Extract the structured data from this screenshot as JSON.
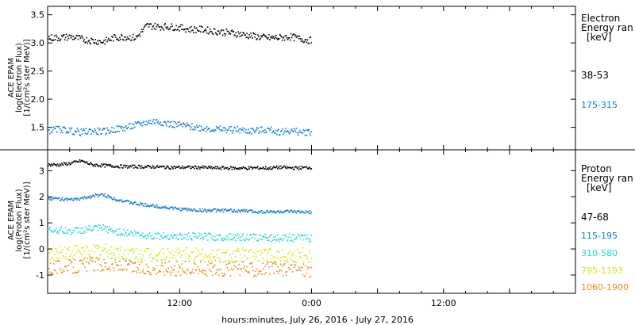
{
  "chart_data": [
    {
      "type": "scatter",
      "panel": "electron",
      "ylabel": [
        "ACE EPAM",
        "log(Electron Flux)",
        "[1/(cm²s ster MeV)]"
      ],
      "ylim": [
        1.1,
        3.65
      ],
      "yticks": [
        1.5,
        2.0,
        2.5,
        3.0,
        3.5
      ],
      "ytick_labels": [
        "1.5",
        "2.0",
        "2.5",
        "3.0",
        "3.5"
      ],
      "legend_title": [
        "Electron",
        "Energy ran",
        "[keV]"
      ],
      "series": [
        {
          "name": "38-53",
          "color": "#000000",
          "x": [
            0,
            1,
            2,
            3,
            4,
            5,
            6,
            7,
            8,
            9,
            10,
            11,
            12,
            13,
            14,
            15,
            16,
            17,
            18,
            19,
            20,
            21,
            22,
            23,
            24
          ],
          "y": [
            3.1,
            3.1,
            3.12,
            3.08,
            3.05,
            3.03,
            3.1,
            3.12,
            3.1,
            3.32,
            3.3,
            3.3,
            3.28,
            3.25,
            3.25,
            3.22,
            3.2,
            3.18,
            3.15,
            3.12,
            3.1,
            3.1,
            3.12,
            3.08,
            3.05
          ]
        },
        {
          "name": "175-315",
          "color": "#0a7ad8",
          "x": [
            0,
            1,
            2,
            3,
            4,
            5,
            6,
            7,
            8,
            9,
            10,
            11,
            12,
            13,
            14,
            15,
            16,
            17,
            18,
            19,
            20,
            21,
            22,
            23,
            24
          ],
          "y": [
            1.45,
            1.48,
            1.45,
            1.42,
            1.45,
            1.43,
            1.47,
            1.5,
            1.55,
            1.6,
            1.62,
            1.57,
            1.55,
            1.52,
            1.5,
            1.48,
            1.47,
            1.47,
            1.45,
            1.45,
            1.47,
            1.43,
            1.45,
            1.42,
            1.43
          ]
        }
      ]
    },
    {
      "type": "scatter",
      "panel": "proton",
      "ylabel": [
        "ACE EPAM",
        "log(Proton Flux)",
        "[1/(cm²s ster MeV)]"
      ],
      "ylim": [
        -1.7,
        3.8
      ],
      "yticks": [
        -1,
        0,
        1,
        2,
        3
      ],
      "ytick_labels": [
        "-1",
        "0",
        "1",
        "2",
        "3"
      ],
      "legend_title": [
        "Proton",
        "Energy ran",
        "[keV]"
      ],
      "series": [
        {
          "name": "47-68",
          "color": "#000000",
          "x": [
            0,
            1,
            2,
            3,
            4,
            5,
            6,
            7,
            8,
            9,
            10,
            11,
            12,
            13,
            14,
            15,
            16,
            17,
            18,
            19,
            20,
            21,
            22,
            23,
            24
          ],
          "y": [
            3.25,
            3.25,
            3.3,
            3.4,
            3.25,
            3.22,
            3.2,
            3.18,
            3.18,
            3.17,
            3.17,
            3.15,
            3.15,
            3.15,
            3.15,
            3.13,
            3.13,
            3.12,
            3.12,
            3.13,
            3.12,
            3.15,
            3.13,
            3.13,
            3.15
          ]
        },
        {
          "name": "115-195",
          "color": "#0a7ad8",
          "x": [
            0,
            1,
            2,
            3,
            4,
            5,
            6,
            7,
            8,
            9,
            10,
            11,
            12,
            13,
            14,
            15,
            16,
            17,
            18,
            19,
            20,
            21,
            22,
            23,
            24
          ],
          "y": [
            1.95,
            1.95,
            1.9,
            1.95,
            2.05,
            2.1,
            1.95,
            1.85,
            1.75,
            1.7,
            1.65,
            1.6,
            1.55,
            1.52,
            1.5,
            1.5,
            1.5,
            1.48,
            1.48,
            1.45,
            1.45,
            1.45,
            1.45,
            1.43,
            1.43
          ]
        },
        {
          "name": "310-580",
          "color": "#22d8d2",
          "x": [
            0,
            1,
            2,
            3,
            4,
            5,
            6,
            7,
            8,
            9,
            10,
            11,
            12,
            13,
            14,
            15,
            16,
            17,
            18,
            19,
            20,
            21,
            22,
            23,
            24
          ],
          "y": [
            0.75,
            0.75,
            0.7,
            0.75,
            0.8,
            0.82,
            0.7,
            0.65,
            0.6,
            0.55,
            0.52,
            0.52,
            0.5,
            0.5,
            0.5,
            0.48,
            0.48,
            0.48,
            0.47,
            0.47,
            0.45,
            0.45,
            0.45,
            0.45,
            0.45
          ]
        },
        {
          "name": "795-1193",
          "color": "#d2e81a",
          "x": [
            0,
            1,
            2,
            3,
            4,
            5,
            6,
            7,
            8,
            9,
            10,
            11,
            12,
            13,
            14,
            15,
            16,
            17,
            18,
            19,
            20,
            21,
            22,
            23,
            24
          ],
          "y": [
            -0.15,
            -0.12,
            -0.1,
            -0.1,
            -0.05,
            -0.05,
            -0.1,
            -0.15,
            -0.18,
            -0.2,
            -0.2,
            -0.2,
            -0.22,
            -0.2,
            -0.22,
            -0.2,
            -0.22,
            -0.2,
            -0.2,
            -0.22,
            -0.2,
            -0.22,
            -0.2,
            -0.2,
            -0.22
          ]
        },
        {
          "name": "1060-1900",
          "color": "#ec8a16",
          "x": [
            0,
            1,
            2,
            3,
            4,
            5,
            6,
            7,
            8,
            9,
            10,
            11,
            12,
            13,
            14,
            15,
            16,
            17,
            18,
            19,
            20,
            21,
            22,
            23,
            24
          ],
          "y": [
            -0.7,
            -0.65,
            -0.65,
            -0.6,
            -0.55,
            -0.55,
            -0.6,
            -0.65,
            -0.7,
            -0.72,
            -0.72,
            -0.7,
            -0.75,
            -0.72,
            -0.75,
            -0.72,
            -0.75,
            -0.72,
            -0.75,
            -0.75,
            -0.72,
            -0.75,
            -0.72,
            -0.75,
            -0.78
          ]
        }
      ]
    }
  ],
  "time_axis": {
    "xlim": [
      0,
      48
    ],
    "major_ticks": [
      0,
      6,
      12,
      18,
      24,
      30,
      36,
      42,
      48
    ],
    "label_values": [
      12,
      24,
      36
    ],
    "labels": [
      "12:00",
      "0:00",
      "12:00"
    ],
    "xlabel": "hours:minutes, July 26, 2016 - July 27, 2016"
  }
}
